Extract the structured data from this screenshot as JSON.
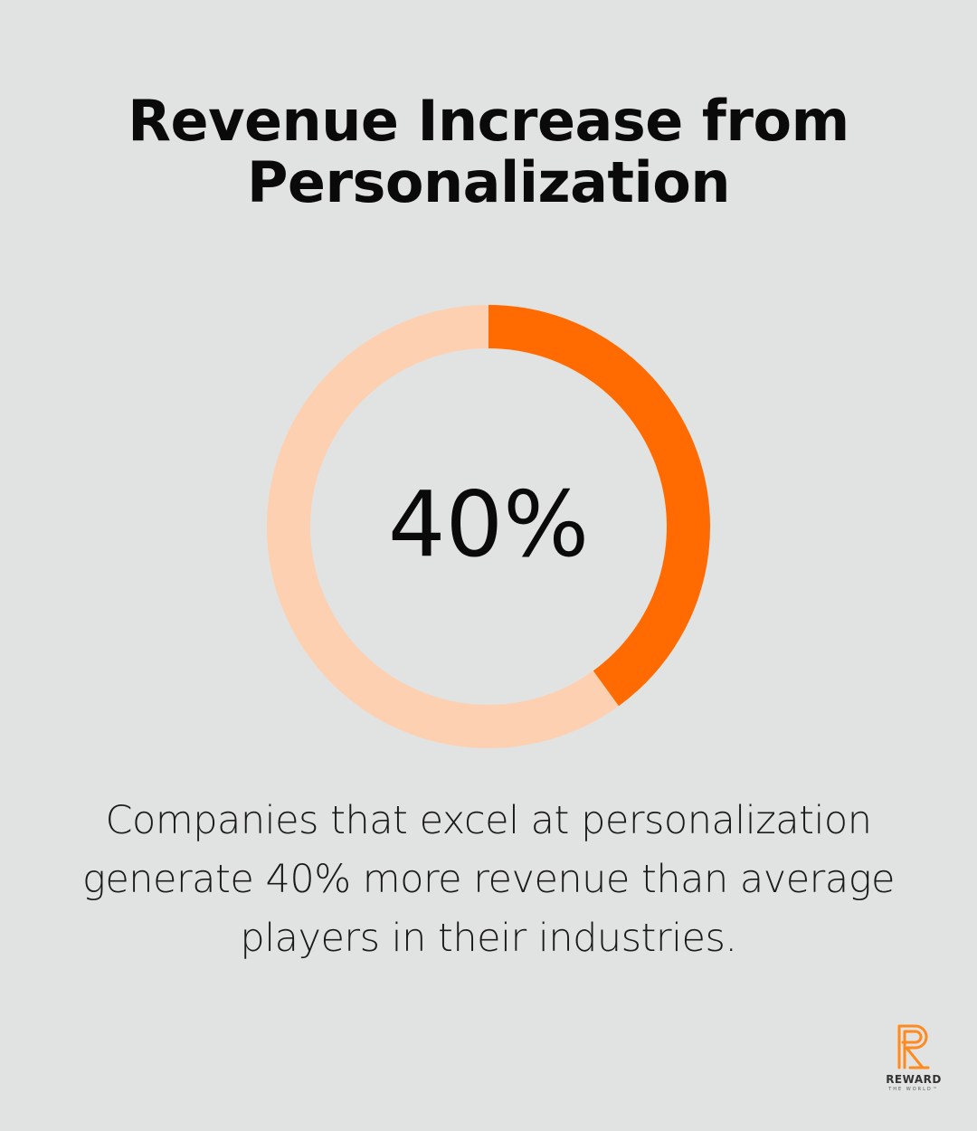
{
  "title_lines": [
    "Revenue Increase from",
    "Personalization"
  ],
  "chart_data": {
    "type": "pie",
    "title": "Revenue Increase from Personalization",
    "value": 40,
    "total": 100,
    "center_label": "40%",
    "colors": {
      "value": "#ff6b00",
      "remainder": "#fdd0b1"
    }
  },
  "caption_lines": [
    "Companies that excel at personalization",
    "generate 40% more revenue than average",
    "players in their industries."
  ],
  "logo": {
    "name": "REWARD",
    "tagline": "THE WORLD™",
    "icon": "reward-r-logo-icon",
    "color": "#ff8a1f"
  }
}
